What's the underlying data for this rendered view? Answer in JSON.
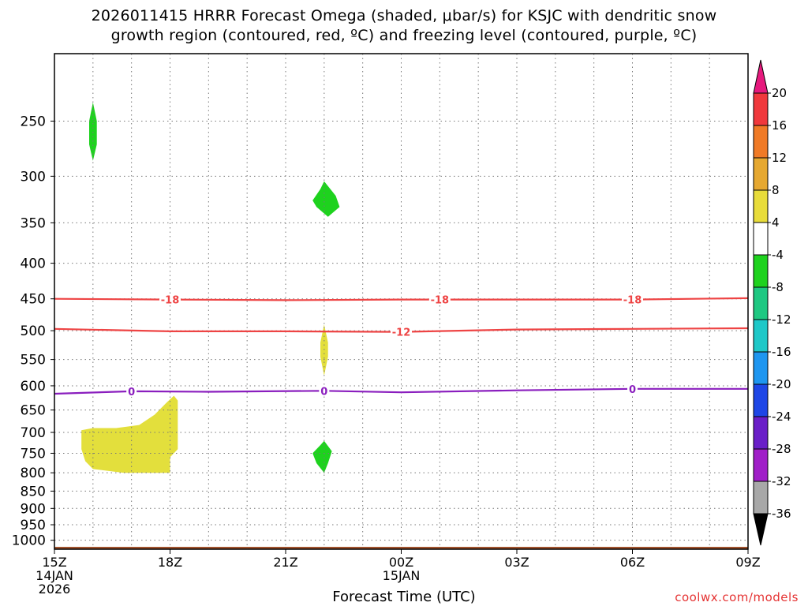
{
  "title": {
    "line1": "2026011415 HRRR Forecast Omega (shaded, μbar/s) for KSJC with dendritic snow",
    "line2": "growth region (contoured, red, ºC) and freezing level (contoured, purple, ºC)"
  },
  "watermark": "coolwx.com/models",
  "chart_data": {
    "type": "heatmap",
    "xlabel": "Forecast Time (UTC)",
    "ylabel": "",
    "x_start_label": [
      "15Z",
      "14JAN",
      "2026"
    ],
    "xticks": [
      {
        "hour": 0,
        "label": "15Z"
      },
      {
        "hour": 3,
        "label": "18Z"
      },
      {
        "hour": 6,
        "label": "21Z"
      },
      {
        "hour": 9,
        "label": "00Z",
        "sublabel": "15JAN"
      },
      {
        "hour": 12,
        "label": "03Z"
      },
      {
        "hour": 15,
        "label": "06Z"
      },
      {
        "hour": 18,
        "label": "09Z"
      }
    ],
    "xlim_hours": [
      0,
      18
    ],
    "yticks": [
      250,
      300,
      350,
      400,
      450,
      500,
      550,
      600,
      650,
      700,
      750,
      800,
      850,
      900,
      950,
      1000
    ],
    "ylim_hPa": [
      200,
      1030
    ],
    "yscale": "log",
    "grid": true,
    "colorbar": {
      "labels": [
        "20",
        "16",
        "12",
        "8",
        "4",
        "-4",
        "-8",
        "-12",
        "-16",
        "-20",
        "-24",
        "-28",
        "-32",
        "-36"
      ],
      "bands": [
        {
          "from": 16,
          "to": 20,
          "color": "#f0383c"
        },
        {
          "from": 12,
          "to": 16,
          "color": "#f07a26"
        },
        {
          "from": 8,
          "to": 12,
          "color": "#e6a830"
        },
        {
          "from": 4,
          "to": 8,
          "color": "#e8dc3a"
        },
        {
          "from": -4,
          "to": 4,
          "color": "#ffffff"
        },
        {
          "from": -8,
          "to": -4,
          "color": "#1ed21e"
        },
        {
          "from": -12,
          "to": -8,
          "color": "#1ec882"
        },
        {
          "from": -16,
          "to": -12,
          "color": "#1ec8c8"
        },
        {
          "from": -20,
          "to": -16,
          "color": "#1e96f0"
        },
        {
          "from": -24,
          "to": -20,
          "color": "#1e46e6"
        },
        {
          "from": -28,
          "to": -24,
          "color": "#6a1ec8"
        },
        {
          "from": -32,
          "to": -28,
          "color": "#a01ec8"
        },
        {
          "from": -36,
          "to": -32,
          "color": "#a8a8a8"
        }
      ],
      "top_arrow_color": "#e6197d",
      "bottom_arrow_color": "#000000"
    },
    "contours": [
      {
        "name": "-18",
        "color": "#ee4444",
        "points": [
          [
            0,
            450
          ],
          [
            3,
            451
          ],
          [
            6,
            452
          ],
          [
            9,
            451
          ],
          [
            12,
            451
          ],
          [
            15,
            451
          ],
          [
            18,
            449
          ]
        ],
        "labels_at": [
          3,
          10,
          15
        ]
      },
      {
        "name": "-12",
        "color": "#ee4444",
        "points": [
          [
            0,
            497
          ],
          [
            3,
            501
          ],
          [
            6,
            501
          ],
          [
            9,
            502
          ],
          [
            12,
            498
          ],
          [
            15,
            497
          ],
          [
            18,
            496
          ]
        ],
        "labels_at": [
          9
        ]
      },
      {
        "name": "0",
        "color": "#8a1ebe",
        "points": [
          [
            0,
            616
          ],
          [
            2,
            611
          ],
          [
            4,
            612
          ],
          [
            7,
            610
          ],
          [
            9,
            613
          ],
          [
            12,
            609
          ],
          [
            15,
            606
          ],
          [
            18,
            606
          ]
        ],
        "labels_at": [
          2,
          7,
          15
        ]
      }
    ],
    "shaded_regions": [
      {
        "value": -6,
        "color": "#1ed21e",
        "outline": [
          [
            1.0,
            235
          ],
          [
            1.1,
            250
          ],
          [
            1.1,
            270
          ],
          [
            1.0,
            285
          ],
          [
            0.9,
            270
          ],
          [
            0.9,
            250
          ]
        ]
      },
      {
        "value": -6,
        "color": "#1ed21e",
        "outline": [
          [
            7.0,
            305
          ],
          [
            7.3,
            320
          ],
          [
            7.4,
            332
          ],
          [
            7.1,
            343
          ],
          [
            6.8,
            332
          ],
          [
            6.7,
            325
          ],
          [
            6.9,
            313
          ]
        ]
      },
      {
        "value": 5,
        "color": "#e3df3c",
        "outline": [
          [
            7.0,
            490
          ],
          [
            7.1,
            520
          ],
          [
            7.1,
            545
          ],
          [
            7.0,
            580
          ],
          [
            6.9,
            545
          ],
          [
            6.9,
            520
          ]
        ]
      },
      {
        "value": -6,
        "color": "#1ed21e",
        "outline": [
          [
            7.0,
            720
          ],
          [
            7.2,
            745
          ],
          [
            7.1,
            775
          ],
          [
            7.0,
            800
          ],
          [
            6.8,
            775
          ],
          [
            6.7,
            750
          ],
          [
            6.9,
            730
          ]
        ]
      },
      {
        "value": 5,
        "color": "#e3df3c",
        "outline": [
          [
            0.7,
            695
          ],
          [
            1.0,
            690
          ],
          [
            1.6,
            690
          ],
          [
            2.2,
            683
          ],
          [
            2.6,
            660
          ],
          [
            2.9,
            635
          ],
          [
            3.1,
            620
          ],
          [
            3.2,
            630
          ],
          [
            3.2,
            680
          ],
          [
            3.2,
            740
          ],
          [
            3.0,
            760
          ],
          [
            3.0,
            800
          ],
          [
            1.8,
            800
          ],
          [
            1.0,
            790
          ],
          [
            0.8,
            770
          ],
          [
            0.7,
            740
          ]
        ]
      }
    ],
    "terrain": {
      "color": "#a0522d",
      "pressure_hPa": 1022
    }
  }
}
